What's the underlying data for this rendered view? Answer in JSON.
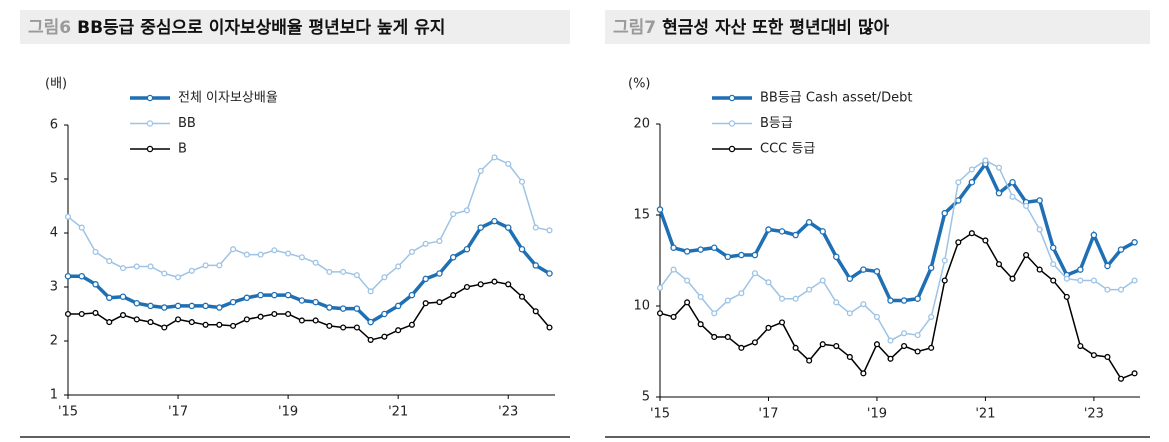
{
  "chart_data": [
    {
      "type": "line",
      "figure_label": "그림6",
      "title": "BB등급 중심으로 이자보상배율 평년보다 높게 유지",
      "y_unit": "(배)",
      "x": [
        2015,
        2015.25,
        2015.5,
        2015.75,
        2016,
        2016.25,
        2016.5,
        2016.75,
        2017,
        2017.25,
        2017.5,
        2017.75,
        2018,
        2018.25,
        2018.5,
        2018.75,
        2019,
        2019.25,
        2019.5,
        2019.75,
        2020,
        2020.25,
        2020.5,
        2020.75,
        2021,
        2021.25,
        2021.5,
        2021.75,
        2022,
        2022.25,
        2022.5,
        2022.75,
        2023,
        2023.25,
        2023.5,
        2023.75
      ],
      "xlim": [
        2015,
        2023.85
      ],
      "xticks": [
        {
          "value": 2015,
          "label": "'15"
        },
        {
          "value": 2017,
          "label": "'17"
        },
        {
          "value": 2019,
          "label": "'19"
        },
        {
          "value": 2021,
          "label": "'21"
        },
        {
          "value": 2023,
          "label": "'23"
        }
      ],
      "ylim": [
        1,
        6
      ],
      "yticks": [
        1,
        2,
        3,
        4,
        5,
        6
      ],
      "series": [
        {
          "name": "전체 이자보상배율",
          "color": "#1f6fb5",
          "width": 3.5,
          "values": [
            3.2,
            3.2,
            3.05,
            2.8,
            2.82,
            2.7,
            2.65,
            2.62,
            2.65,
            2.65,
            2.65,
            2.62,
            2.72,
            2.8,
            2.85,
            2.85,
            2.85,
            2.75,
            2.72,
            2.62,
            2.6,
            2.6,
            2.35,
            2.5,
            2.65,
            2.85,
            3.15,
            3.25,
            3.55,
            3.7,
            4.1,
            4.22,
            4.1,
            3.7,
            3.4,
            3.25
          ]
        },
        {
          "name": "BB",
          "color": "#9dc3e6",
          "width": 1.5,
          "values": [
            4.3,
            4.1,
            3.65,
            3.48,
            3.35,
            3.38,
            3.38,
            3.25,
            3.18,
            3.3,
            3.4,
            3.4,
            3.7,
            3.6,
            3.6,
            3.68,
            3.62,
            3.55,
            3.45,
            3.28,
            3.28,
            3.22,
            2.92,
            3.18,
            3.38,
            3.65,
            3.8,
            3.85,
            4.35,
            4.42,
            5.15,
            5.4,
            5.28,
            4.95,
            4.1,
            4.05
          ]
        },
        {
          "name": "B",
          "color": "#000000",
          "width": 1.5,
          "values": [
            2.5,
            2.5,
            2.52,
            2.35,
            2.48,
            2.4,
            2.35,
            2.25,
            2.4,
            2.35,
            2.3,
            2.3,
            2.28,
            2.4,
            2.45,
            2.5,
            2.5,
            2.38,
            2.38,
            2.28,
            2.25,
            2.25,
            2.02,
            2.08,
            2.2,
            2.3,
            2.7,
            2.72,
            2.85,
            3.0,
            3.05,
            3.1,
            3.05,
            2.82,
            2.55,
            2.25
          ]
        }
      ]
    },
    {
      "type": "line",
      "figure_label": "그림7",
      "title": "현금성 자산 또한 평년대비 많아",
      "y_unit": "(%)",
      "x": [
        2015,
        2015.25,
        2015.5,
        2015.75,
        2016,
        2016.25,
        2016.5,
        2016.75,
        2017,
        2017.25,
        2017.5,
        2017.75,
        2018,
        2018.25,
        2018.5,
        2018.75,
        2019,
        2019.25,
        2019.5,
        2019.75,
        2020,
        2020.25,
        2020.5,
        2020.75,
        2021,
        2021.25,
        2021.5,
        2021.75,
        2022,
        2022.25,
        2022.5,
        2022.75,
        2023,
        2023.25,
        2023.5,
        2023.75
      ],
      "xlim": [
        2015,
        2023.85
      ],
      "xticks": [
        {
          "value": 2015,
          "label": "'15"
        },
        {
          "value": 2017,
          "label": "'17"
        },
        {
          "value": 2019,
          "label": "'19"
        },
        {
          "value": 2021,
          "label": "'21"
        },
        {
          "value": 2023,
          "label": "'23"
        }
      ],
      "ylim": [
        5,
        20
      ],
      "yticks": [
        5,
        10,
        15,
        20
      ],
      "series": [
        {
          "name": "BB등급 Cash asset/Debt",
          "color": "#1f6fb5",
          "width": 3.5,
          "values": [
            15.3,
            13.2,
            13.0,
            13.1,
            13.2,
            12.7,
            12.8,
            12.8,
            14.2,
            14.1,
            13.9,
            14.6,
            14.1,
            12.7,
            11.5,
            12.0,
            11.9,
            10.3,
            10.3,
            10.4,
            12.1,
            15.1,
            15.8,
            16.8,
            17.8,
            16.2,
            16.8,
            15.7,
            15.8,
            13.2,
            11.7,
            12.0,
            13.9,
            12.2,
            13.1,
            13.5
          ]
        },
        {
          "name": "B등급",
          "color": "#9dc3e6",
          "width": 1.5,
          "values": [
            11.0,
            12.0,
            11.4,
            10.5,
            9.6,
            10.3,
            10.7,
            11.8,
            11.3,
            10.4,
            10.4,
            10.9,
            11.4,
            10.2,
            9.6,
            10.1,
            9.4,
            8.1,
            8.5,
            8.4,
            9.4,
            12.5,
            16.8,
            17.5,
            18.0,
            17.6,
            16.0,
            15.5,
            14.2,
            12.3,
            11.5,
            11.4,
            11.4,
            10.9,
            10.9,
            11.4
          ]
        },
        {
          "name": "CCC 등급",
          "color": "#000000",
          "width": 1.5,
          "values": [
            9.6,
            9.4,
            10.2,
            9.0,
            8.3,
            8.3,
            7.7,
            8.0,
            8.8,
            9.1,
            7.7,
            7.0,
            7.9,
            7.8,
            7.2,
            6.3,
            7.9,
            7.1,
            7.8,
            7.5,
            7.7,
            11.4,
            13.5,
            14.0,
            13.6,
            12.3,
            11.5,
            12.8,
            12.0,
            11.4,
            10.5,
            7.8,
            7.3,
            7.2,
            6.0,
            6.3
          ]
        }
      ]
    }
  ]
}
